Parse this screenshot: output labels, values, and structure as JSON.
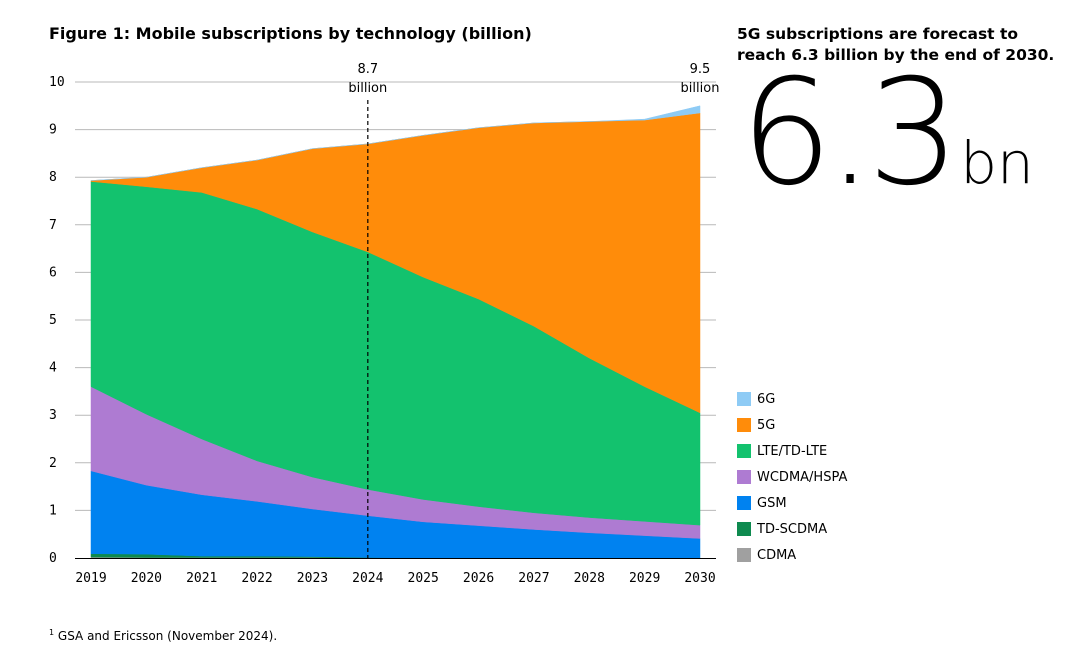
{
  "title": "Figure 1: Mobile subscriptions by technology (billion)",
  "side_panel": {
    "heading": "5G subscriptions are forecast to reach 6.3 billion by the end of 2030.",
    "big_value": "6.3",
    "big_unit": "bn"
  },
  "footnote": {
    "marker": "1",
    "text": " GSA and Ericsson (November 2024)."
  },
  "colors": {
    "6G": "#8ecbf5",
    "5G": "#ff8c0a",
    "LTE/TD-LTE": "#13c26e",
    "WCDMA/HSPA": "#ae7bd2",
    "GSM": "#0082f0",
    "TD-SCDMA": "#0e8a4f",
    "CDMA": "#a0a0a0",
    "grid": "#b9b9b9"
  },
  "chart_data": {
    "type": "area",
    "stacked": true,
    "title": "Figure 1: Mobile subscriptions by technology (billion)",
    "xlabel": "",
    "ylabel": "",
    "x": [
      "2019",
      "2020",
      "2021",
      "2022",
      "2023",
      "2024",
      "2025",
      "2026",
      "2027",
      "2028",
      "2029",
      "2030"
    ],
    "ylim": [
      0,
      10
    ],
    "yticks": [
      "0",
      "1",
      "2",
      "3",
      "4",
      "5",
      "6",
      "7",
      "8",
      "9",
      "10"
    ],
    "grid": true,
    "legend_position": "right",
    "series": [
      {
        "name": "CDMA",
        "values": [
          0.02,
          0.01,
          0.01,
          0.01,
          0.01,
          0.0,
          0.0,
          0.0,
          0.0,
          0.0,
          0.0,
          0.0
        ]
      },
      {
        "name": "TD-SCDMA",
        "values": [
          0.07,
          0.07,
          0.03,
          0.03,
          0.02,
          0.01,
          0.0,
          0.0,
          0.0,
          0.0,
          0.0,
          0.0
        ]
      },
      {
        "name": "GSM",
        "values": [
          1.74,
          1.45,
          1.29,
          1.15,
          1.0,
          0.88,
          0.76,
          0.68,
          0.6,
          0.53,
          0.47,
          0.41
        ]
      },
      {
        "name": "WCDMA/HSPA",
        "values": [
          1.77,
          1.49,
          1.17,
          0.85,
          0.67,
          0.55,
          0.47,
          0.4,
          0.35,
          0.32,
          0.3,
          0.28
        ]
      },
      {
        "name": "LTE/TD-LTE",
        "values": [
          4.31,
          4.78,
          5.18,
          5.29,
          5.15,
          4.99,
          4.67,
          4.36,
          3.92,
          3.35,
          2.83,
          2.36
        ]
      },
      {
        "name": "5G",
        "values": [
          0.02,
          0.2,
          0.52,
          1.03,
          1.75,
          2.27,
          2.98,
          3.6,
          4.27,
          4.97,
          5.6,
          6.3
        ]
      },
      {
        "name": "6G",
        "values": [
          0.0,
          0.0,
          0.0,
          0.0,
          0.0,
          0.0,
          0.0,
          0.0,
          0.0,
          0.0,
          0.02,
          0.15
        ]
      }
    ],
    "annotations": [
      {
        "x": "2024",
        "line1": "8.7",
        "line2": "billion",
        "dashed_line": true
      },
      {
        "x": "2030",
        "line1": "9.5",
        "line2": "billion",
        "dashed_line": false
      }
    ],
    "legend_order": [
      "6G",
      "5G",
      "LTE/TD-LTE",
      "WCDMA/HSPA",
      "GSM",
      "TD-SCDMA",
      "CDMA"
    ]
  }
}
